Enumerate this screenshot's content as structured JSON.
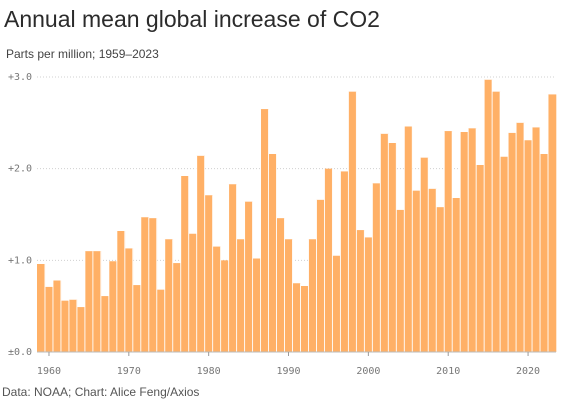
{
  "header": {
    "title": "Annual mean global increase of CO2",
    "subtitle": "Parts per million; 1959–2023"
  },
  "footer": {
    "source": "Data: NOAA; Chart: Alice Feng/Axios"
  },
  "colors": {
    "bar": "#ffb066",
    "grid": "#d0d0d0",
    "tick_text": "#777777"
  },
  "chart_data": {
    "type": "bar",
    "title": "Annual mean global increase of CO2",
    "subtitle": "Parts per million; 1959–2023",
    "xlabel": "",
    "ylabel": "",
    "x": [
      1959,
      1960,
      1961,
      1962,
      1963,
      1964,
      1965,
      1966,
      1967,
      1968,
      1969,
      1970,
      1971,
      1972,
      1973,
      1974,
      1975,
      1976,
      1977,
      1978,
      1979,
      1980,
      1981,
      1982,
      1983,
      1984,
      1985,
      1986,
      1987,
      1988,
      1989,
      1990,
      1991,
      1992,
      1993,
      1994,
      1995,
      1996,
      1997,
      1998,
      1999,
      2000,
      2001,
      2002,
      2003,
      2004,
      2005,
      2006,
      2007,
      2008,
      2009,
      2010,
      2011,
      2012,
      2013,
      2014,
      2015,
      2016,
      2017,
      2018,
      2019,
      2020,
      2021,
      2022,
      2023
    ],
    "values": [
      0.96,
      0.71,
      0.78,
      0.56,
      0.57,
      0.49,
      1.1,
      1.1,
      0.61,
      0.99,
      1.32,
      1.13,
      0.73,
      1.47,
      1.46,
      0.68,
      1.23,
      0.97,
      1.92,
      1.29,
      2.14,
      1.71,
      1.15,
      1.0,
      1.83,
      1.23,
      1.64,
      1.02,
      2.65,
      2.16,
      1.46,
      1.23,
      0.75,
      0.72,
      1.23,
      1.66,
      2.0,
      1.05,
      1.97,
      2.84,
      1.33,
      1.25,
      1.84,
      2.38,
      2.28,
      1.55,
      2.46,
      1.76,
      2.12,
      1.78,
      1.58,
      2.41,
      1.68,
      2.4,
      2.44,
      2.04,
      2.97,
      2.84,
      2.13,
      2.39,
      2.5,
      2.31,
      2.45,
      2.16,
      2.81
    ],
    "ylim": [
      0,
      3
    ],
    "yticks": [
      {
        "value": 0,
        "label": "±0.0"
      },
      {
        "value": 1,
        "label": "+1.0"
      },
      {
        "value": 2,
        "label": "+2.0"
      },
      {
        "value": 3,
        "label": "+3.0"
      }
    ],
    "xticks": [
      {
        "value": 1960,
        "label": "1960"
      },
      {
        "value": 1970,
        "label": "1970"
      },
      {
        "value": 1980,
        "label": "1980"
      },
      {
        "value": 1990,
        "label": "1990"
      },
      {
        "value": 2000,
        "label": "2000"
      },
      {
        "value": 2010,
        "label": "2010"
      },
      {
        "value": 2020,
        "label": "2020"
      }
    ],
    "grid": true
  }
}
